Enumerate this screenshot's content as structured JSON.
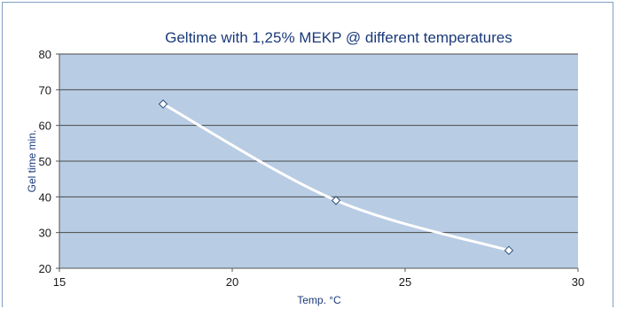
{
  "chart_data": {
    "type": "line",
    "title": "Geltime with 1,25% MEKP @ different temperatures",
    "xlabel": "Temp. °C",
    "ylabel": "Gel time min.",
    "xlim": [
      15,
      30
    ],
    "ylim": [
      20,
      80
    ],
    "x_ticks": [
      15,
      20,
      25,
      30
    ],
    "y_ticks": [
      20,
      30,
      40,
      50,
      60,
      70,
      80
    ],
    "grid": true,
    "smooth": true,
    "series": [
      {
        "x": [
          18,
          23,
          28
        ],
        "values": [
          66,
          39,
          25
        ]
      }
    ],
    "colors": {
      "plot_background": "#b8cce4",
      "line": "#ffffff",
      "marker_fill": "#ffffff",
      "marker_stroke": "#2f4f7f",
      "gridline": "#4a4a4a",
      "title": "#1a3a7a"
    }
  }
}
